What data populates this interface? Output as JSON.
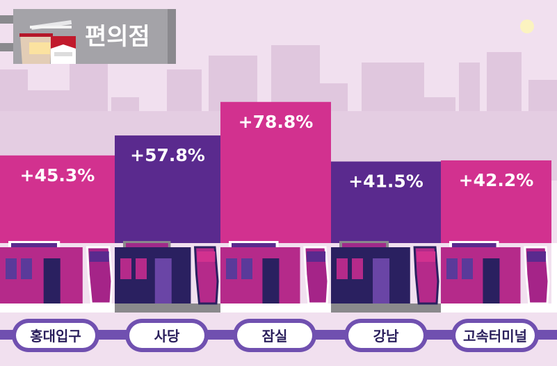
{
  "title": "편의점",
  "colors": {
    "pink": "#d2318f",
    "purple": "#5a2a8e",
    "background": "#f1e0ef",
    "line": "#7050b0",
    "skyline": "#dfc4dc"
  },
  "chart_data": {
    "type": "bar",
    "categories": [
      "홍대입구",
      "사당",
      "잠실",
      "강남",
      "고속터미널"
    ],
    "values": [
      45.3,
      57.8,
      78.8,
      41.5,
      42.2
    ],
    "data_labels": [
      "+45.3%",
      "+57.8%",
      "+78.8%",
      "+41.5%",
      "+42.2%"
    ],
    "unit": "%",
    "grid": false
  }
}
